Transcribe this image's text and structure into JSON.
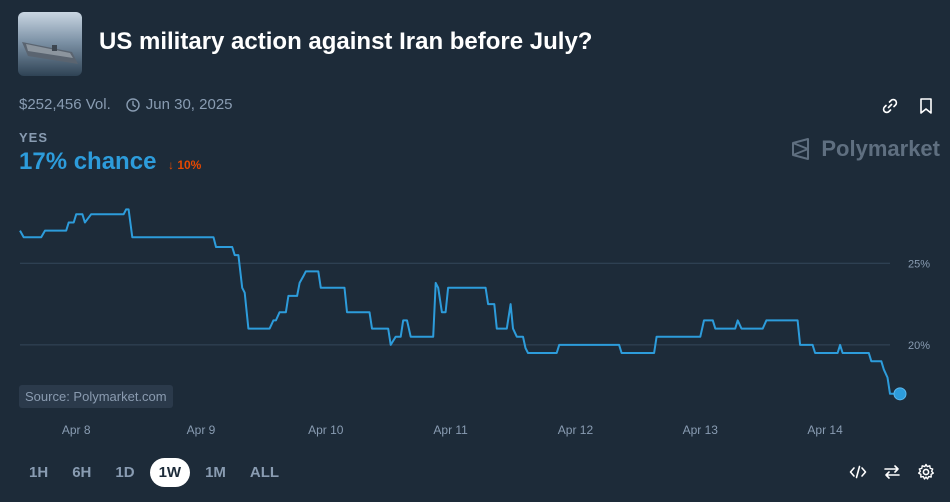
{
  "market": {
    "title": "US military action against Iran before July?",
    "volume": "$252,456 Vol.",
    "end_date": "Jun 30, 2025",
    "outcome_label": "YES",
    "chance_text": "17% chance",
    "change_text": "↓ 10%",
    "brand": "Polymarket",
    "source": "Source: Polymarket.com"
  },
  "icons": {
    "link": "link-icon",
    "bookmark": "bookmark-icon",
    "clock": "clock-icon",
    "embed": "code-icon",
    "swap": "swap-icon",
    "settings": "gear-icon"
  },
  "ranges": [
    "1H",
    "6H",
    "1D",
    "1W",
    "1M",
    "ALL"
  ],
  "active_range": "1W",
  "colors": {
    "background": "#1d2b39",
    "line": "#2d9cdb",
    "delta": "#e64800",
    "muted": "#899cb2"
  },
  "chart_data": {
    "type": "line",
    "ylabel": "",
    "ylim": [
      16.5,
      29
    ],
    "yticks": [
      "25%",
      "20%"
    ],
    "ytick_values": [
      25,
      20
    ],
    "xticks": [
      "Apr 8",
      "Apr 9",
      "Apr 10",
      "Apr 11",
      "Apr 12",
      "Apr 13",
      "Apr 14"
    ],
    "xtick_values": [
      8,
      9,
      10,
      11,
      12,
      13,
      14
    ],
    "xlim": [
      7.55,
      14.6
    ],
    "grid": true,
    "series": [
      {
        "values": [
          [
            7.55,
            27.0
          ],
          [
            7.58,
            26.6
          ],
          [
            7.72,
            26.6
          ],
          [
            7.75,
            27.0
          ],
          [
            7.92,
            27.0
          ],
          [
            7.94,
            27.5
          ],
          [
            7.98,
            27.5
          ],
          [
            8.0,
            28.0
          ],
          [
            8.05,
            28.0
          ],
          [
            8.07,
            27.5
          ],
          [
            8.12,
            28.0
          ],
          [
            8.38,
            28.0
          ],
          [
            8.4,
            28.3
          ],
          [
            8.42,
            28.3
          ],
          [
            8.45,
            26.6
          ],
          [
            9.1,
            26.6
          ],
          [
            9.12,
            26.0
          ],
          [
            9.25,
            26.0
          ],
          [
            9.27,
            25.5
          ],
          [
            9.3,
            25.5
          ],
          [
            9.33,
            23.5
          ],
          [
            9.35,
            23.2
          ],
          [
            9.38,
            21.0
          ],
          [
            9.55,
            21.0
          ],
          [
            9.58,
            21.5
          ],
          [
            9.6,
            21.5
          ],
          [
            9.63,
            22.0
          ],
          [
            9.68,
            22.0
          ],
          [
            9.7,
            23.0
          ],
          [
            9.77,
            23.0
          ],
          [
            9.79,
            23.8
          ],
          [
            9.82,
            24.2
          ],
          [
            9.84,
            24.5
          ],
          [
            9.94,
            24.5
          ],
          [
            9.96,
            23.5
          ],
          [
            10.15,
            23.5
          ],
          [
            10.17,
            22.0
          ],
          [
            10.35,
            22.0
          ],
          [
            10.37,
            21.0
          ],
          [
            10.5,
            21.0
          ],
          [
            10.52,
            20.0
          ],
          [
            10.56,
            20.5
          ],
          [
            10.6,
            20.5
          ],
          [
            10.62,
            21.5
          ],
          [
            10.65,
            21.5
          ],
          [
            10.68,
            20.5
          ],
          [
            10.86,
            20.5
          ],
          [
            10.88,
            23.8
          ],
          [
            10.9,
            23.5
          ],
          [
            10.93,
            22.0
          ],
          [
            10.96,
            22.0
          ],
          [
            10.98,
            23.5
          ],
          [
            11.28,
            23.5
          ],
          [
            11.3,
            22.5
          ],
          [
            11.35,
            22.5
          ],
          [
            11.37,
            21.0
          ],
          [
            11.45,
            21.0
          ],
          [
            11.48,
            22.5
          ],
          [
            11.5,
            21.0
          ],
          [
            11.53,
            20.5
          ],
          [
            11.58,
            20.5
          ],
          [
            11.6,
            19.8
          ],
          [
            11.62,
            19.5
          ],
          [
            11.85,
            19.5
          ],
          [
            11.87,
            20.0
          ],
          [
            12.35,
            20.0
          ],
          [
            12.37,
            19.5
          ],
          [
            12.63,
            19.5
          ],
          [
            12.65,
            20.5
          ],
          [
            13.0,
            20.5
          ],
          [
            13.03,
            21.5
          ],
          [
            13.1,
            21.5
          ],
          [
            13.12,
            21.0
          ],
          [
            13.28,
            21.0
          ],
          [
            13.3,
            21.5
          ],
          [
            13.33,
            21.0
          ],
          [
            13.5,
            21.0
          ],
          [
            13.53,
            21.5
          ],
          [
            13.78,
            21.5
          ],
          [
            13.8,
            20.0
          ],
          [
            13.9,
            20.0
          ],
          [
            13.92,
            19.5
          ],
          [
            14.1,
            19.5
          ],
          [
            14.12,
            20.0
          ],
          [
            14.14,
            19.5
          ],
          [
            14.35,
            19.5
          ],
          [
            14.37,
            19.0
          ],
          [
            14.45,
            19.0
          ],
          [
            14.47,
            18.5
          ],
          [
            14.5,
            18.0
          ],
          [
            14.52,
            17.0
          ],
          [
            14.6,
            17.0
          ]
        ]
      }
    ]
  }
}
